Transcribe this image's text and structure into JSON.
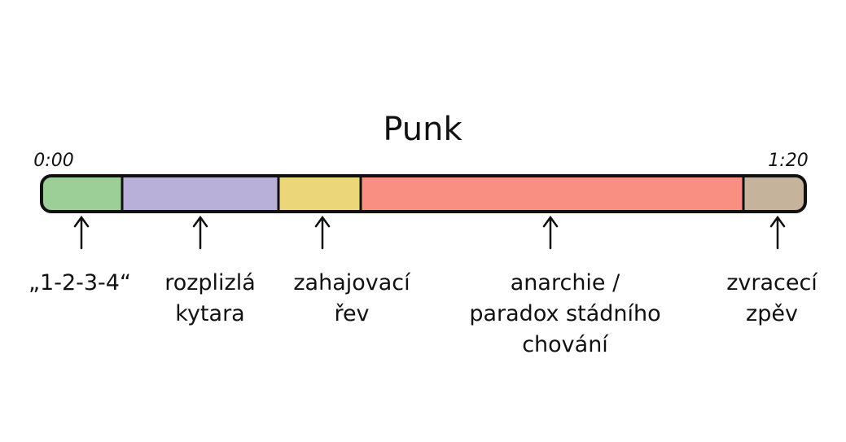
{
  "title": "Punk",
  "start_time": "0:00",
  "end_time": "1:20",
  "segments": [
    {
      "label": [
        "„1-2-3-4“"
      ]
    },
    {
      "label": [
        "rozplizlá",
        "kytara"
      ]
    },
    {
      "label": [
        "zahajovací",
        "řev"
      ]
    },
    {
      "label": [
        "anarchie /",
        "paradox stádního",
        "chování"
      ]
    },
    {
      "label": [
        "zvracecí",
        "zpěv"
      ]
    }
  ]
}
